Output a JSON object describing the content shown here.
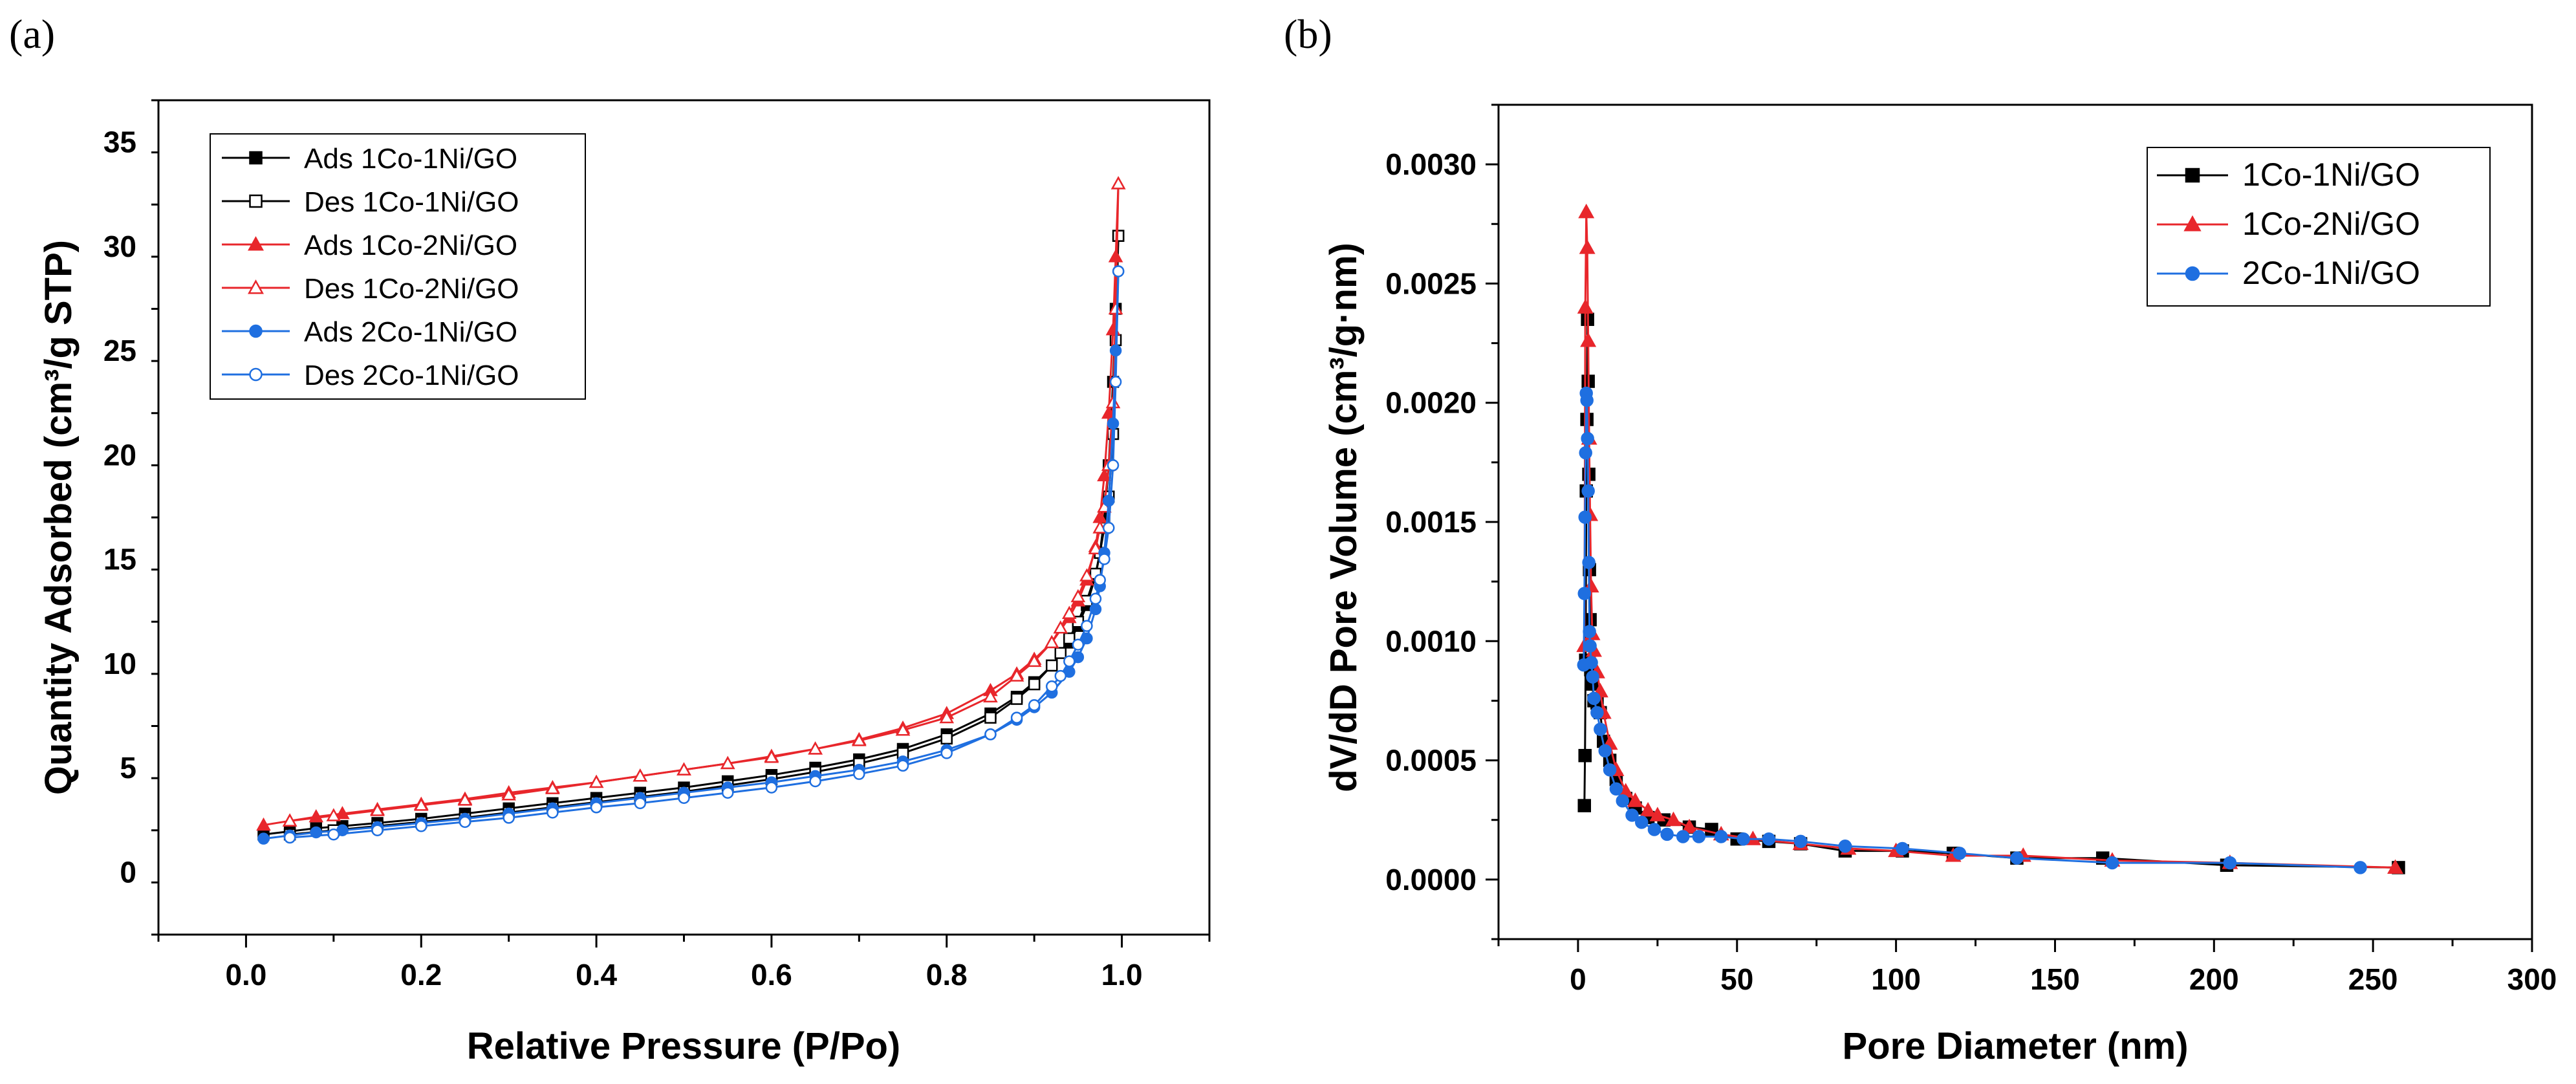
{
  "chart_data": [
    {
      "type": "line",
      "panel_label": "(a)",
      "title": "",
      "xlabel": "Relative Pressure (P/Po)",
      "ylabel": "Quantity Adsorbed (cm³/g STP)",
      "xlim": [
        -0.1,
        1.1
      ],
      "ylim": [
        -3,
        37
      ],
      "xticks": [
        "0.0",
        "0.2",
        "0.4",
        "0.6",
        "0.8",
        "1.0"
      ],
      "yticks": [
        "0",
        "5",
        "10",
        "15",
        "20",
        "25",
        "30",
        "35"
      ],
      "legend_position": "top-left",
      "series": [
        {
          "name": "Ads 1Co-1Ni/GO",
          "color": "#000000",
          "marker": "square-filled",
          "x": [
            0.02,
            0.05,
            0.08,
            0.11,
            0.15,
            0.2,
            0.25,
            0.3,
            0.35,
            0.4,
            0.45,
            0.5,
            0.55,
            0.6,
            0.65,
            0.7,
            0.75,
            0.8,
            0.85,
            0.88,
            0.9,
            0.92,
            0.94,
            0.95,
            0.96,
            0.97,
            0.975,
            0.98,
            0.985,
            0.99,
            0.993,
            0.996
          ],
          "y": [
            1.8,
            1.95,
            2.1,
            2.2,
            2.35,
            2.55,
            2.8,
            3.05,
            3.3,
            3.55,
            3.8,
            4.05,
            4.35,
            4.65,
            5.0,
            5.4,
            5.9,
            6.6,
            7.6,
            8.4,
            9.1,
            9.9,
            11.0,
            11.8,
            12.8,
            14.2,
            15.3,
            17.0,
            19.5,
            23.5,
            27.0,
            30.5
          ]
        },
        {
          "name": "Des 1Co-1Ni/GO",
          "color": "#000000",
          "marker": "square-open",
          "x": [
            0.996,
            0.993,
            0.99,
            0.985,
            0.98,
            0.975,
            0.97,
            0.96,
            0.95,
            0.94,
            0.93,
            0.92,
            0.9,
            0.88,
            0.85,
            0.8,
            0.75,
            0.7,
            0.65,
            0.6,
            0.55,
            0.5,
            0.45,
            0.4,
            0.35,
            0.3,
            0.25,
            0.2,
            0.15,
            0.1,
            0.05
          ],
          "y": [
            30.5,
            25.5,
            21.0,
            18.0,
            16.5,
            15.3,
            14.3,
            13.0,
            12.0,
            11.2,
            10.5,
            9.9,
            9.0,
            8.3,
            7.4,
            6.4,
            5.7,
            5.2,
            4.8,
            4.45,
            4.15,
            3.85,
            3.6,
            3.35,
            3.1,
            2.85,
            2.6,
            2.4,
            2.2,
            2.0,
            1.8
          ]
        },
        {
          "name": "Ads 1Co-2Ni/GO",
          "color": "#e8262b",
          "marker": "triangle-filled",
          "x": [
            0.02,
            0.05,
            0.08,
            0.11,
            0.15,
            0.2,
            0.25,
            0.3,
            0.35,
            0.4,
            0.45,
            0.5,
            0.55,
            0.6,
            0.65,
            0.7,
            0.75,
            0.8,
            0.85,
            0.88,
            0.9,
            0.92,
            0.94,
            0.95,
            0.96,
            0.97,
            0.975,
            0.98,
            0.985,
            0.99,
            0.993,
            0.996
          ],
          "y": [
            2.25,
            2.45,
            2.65,
            2.8,
            3.0,
            3.25,
            3.5,
            3.8,
            4.05,
            4.3,
            4.6,
            4.9,
            5.2,
            5.55,
            5.9,
            6.35,
            6.9,
            7.6,
            8.7,
            9.5,
            10.2,
            11.0,
            12.2,
            13.0,
            14.0,
            15.6,
            17.0,
            19.0,
            22.0,
            26.0,
            29.5,
            33.0
          ]
        },
        {
          "name": "Des 1Co-2Ni/GO",
          "color": "#e8262b",
          "marker": "triangle-open",
          "x": [
            0.996,
            0.993,
            0.99,
            0.985,
            0.98,
            0.975,
            0.97,
            0.96,
            0.95,
            0.94,
            0.93,
            0.92,
            0.9,
            0.88,
            0.85,
            0.8,
            0.75,
            0.7,
            0.65,
            0.6,
            0.55,
            0.5,
            0.45,
            0.4,
            0.35,
            0.3,
            0.25,
            0.2,
            0.15,
            0.1,
            0.05
          ],
          "y": [
            33.0,
            27.0,
            22.5,
            19.5,
            17.5,
            16.5,
            15.5,
            14.2,
            13.2,
            12.4,
            11.7,
            11.0,
            10.1,
            9.4,
            8.4,
            7.4,
            6.8,
            6.3,
            5.9,
            5.5,
            5.2,
            4.9,
            4.6,
            4.3,
            4.0,
            3.7,
            3.45,
            3.2,
            2.95,
            2.7,
            2.45
          ]
        },
        {
          "name": "Ads 2Co-1Ni/GO",
          "color": "#1f6fe0",
          "marker": "circle-filled",
          "x": [
            0.02,
            0.05,
            0.08,
            0.11,
            0.15,
            0.2,
            0.25,
            0.3,
            0.35,
            0.4,
            0.45,
            0.5,
            0.55,
            0.6,
            0.65,
            0.7,
            0.75,
            0.8,
            0.85,
            0.88,
            0.9,
            0.92,
            0.94,
            0.95,
            0.96,
            0.97,
            0.975,
            0.98,
            0.985,
            0.99,
            0.993,
            0.996
          ],
          "y": [
            1.6,
            1.75,
            1.9,
            2.0,
            2.15,
            2.35,
            2.55,
            2.8,
            3.05,
            3.3,
            3.55,
            3.8,
            4.05,
            4.3,
            4.6,
            4.9,
            5.3,
            5.85,
            6.6,
            7.3,
            7.9,
            8.6,
            9.6,
            10.3,
            11.2,
            12.6,
            13.7,
            15.3,
            17.8,
            21.5,
            25.0,
            28.8
          ]
        },
        {
          "name": "Des 2Co-1Ni/GO",
          "color": "#1f6fe0",
          "marker": "circle-open",
          "x": [
            0.996,
            0.993,
            0.99,
            0.985,
            0.98,
            0.975,
            0.97,
            0.96,
            0.95,
            0.94,
            0.93,
            0.92,
            0.9,
            0.88,
            0.85,
            0.8,
            0.75,
            0.7,
            0.65,
            0.6,
            0.55,
            0.5,
            0.45,
            0.4,
            0.35,
            0.3,
            0.25,
            0.2,
            0.15,
            0.1,
            0.05
          ],
          "y": [
            28.8,
            23.5,
            19.5,
            16.5,
            15.0,
            14.0,
            13.1,
            11.8,
            10.9,
            10.1,
            9.4,
            8.9,
            8.0,
            7.4,
            6.6,
            5.7,
            5.1,
            4.7,
            4.35,
            4.05,
            3.8,
            3.55,
            3.3,
            3.1,
            2.85,
            2.6,
            2.4,
            2.2,
            2.0,
            1.8,
            1.65
          ]
        }
      ]
    },
    {
      "type": "line",
      "panel_label": "(b)",
      "title": "",
      "xlabel": "Pore Diameter (nm)",
      "ylabel": "dV/dD Pore Volume (cm³/g·nm)",
      "xlim": [
        -25,
        300
      ],
      "ylim": [
        -0.00025,
        0.00325
      ],
      "xticks": [
        "0",
        "50",
        "100",
        "150",
        "200",
        "250",
        "300"
      ],
      "yticks": [
        "0.0000",
        "0.0005",
        "0.0010",
        "0.0015",
        "0.0020",
        "0.0025",
        "0.0030"
      ],
      "legend_position": "top-right",
      "series": [
        {
          "name": "1Co-1Ni/GO",
          "color": "#000000",
          "marker": "square-filled",
          "x": [
            2.0,
            2.2,
            2.4,
            2.6,
            2.8,
            3.0,
            3.2,
            3.4,
            3.6,
            3.8,
            4.0,
            4.5,
            5.0,
            6.0,
            7.0,
            8.0,
            10.0,
            12.0,
            15.0,
            18.0,
            22.0,
            27.0,
            35.0,
            42.0,
            50.0,
            60.0,
            70.0,
            84.0,
            102.0,
            118.0,
            138.0,
            165.0,
            204.0,
            258.0
          ],
          "y": [
            0.00031,
            0.00052,
            0.00092,
            0.00163,
            0.00193,
            0.00235,
            0.00209,
            0.0017,
            0.0013,
            0.00109,
            0.00088,
            0.00082,
            0.00075,
            0.00074,
            0.0007,
            0.00058,
            0.0005,
            0.00042,
            0.00034,
            0.0003,
            0.00026,
            0.00025,
            0.00022,
            0.00021,
            0.00017,
            0.00016,
            0.00015,
            0.00012,
            0.00012,
            0.00011,
            9e-05,
            9e-05,
            6e-05,
            5e-05
          ]
        },
        {
          "name": "1Co-2Ni/GO",
          "color": "#e8262b",
          "marker": "triangle-filled",
          "x": [
            2.0,
            2.3,
            2.6,
            2.9,
            3.2,
            3.5,
            3.8,
            4.1,
            4.5,
            5.0,
            6.0,
            7.0,
            8.0,
            10.0,
            12.0,
            15.0,
            18.0,
            22.0,
            25.0,
            30.0,
            35.0,
            45.0,
            55.0,
            70.0,
            85.0,
            100.0,
            118.0,
            140.0,
            168.0,
            205.0,
            257.0
          ],
          "y": [
            0.00098,
            0.0024,
            0.0028,
            0.00265,
            0.00226,
            0.00185,
            0.00153,
            0.00123,
            0.00103,
            0.00096,
            0.00087,
            0.00079,
            0.0007,
            0.00057,
            0.00046,
            0.00037,
            0.00033,
            0.00029,
            0.00027,
            0.00025,
            0.00022,
            0.00019,
            0.00017,
            0.00015,
            0.00013,
            0.00012,
            0.0001,
            0.0001,
            8e-05,
            7e-05,
            5e-05
          ]
        },
        {
          "name": "2Co-1Ni/GO",
          "color": "#1f6fe0",
          "marker": "circle-filled",
          "x": [
            1.8,
            2.0,
            2.2,
            2.4,
            2.6,
            2.8,
            3.0,
            3.2,
            3.4,
            3.6,
            3.8,
            4.2,
            4.6,
            5.0,
            6.0,
            7.0,
            8.5,
            10.0,
            12.0,
            14.0,
            17.0,
            20.0,
            24.0,
            28.0,
            33.0,
            38.0,
            45.0,
            52.0,
            60.0,
            70.0,
            84.0,
            102.0,
            120.0,
            138.0,
            168.0,
            205.0,
            246.0
          ],
          "y": [
            0.0009,
            0.0012,
            0.00152,
            0.00179,
            0.00204,
            0.00201,
            0.00185,
            0.00163,
            0.00133,
            0.00104,
            0.00098,
            0.00091,
            0.00085,
            0.00076,
            0.0007,
            0.00063,
            0.00054,
            0.00046,
            0.00038,
            0.00033,
            0.00027,
            0.00024,
            0.00021,
            0.00019,
            0.00018,
            0.00018,
            0.00018,
            0.00017,
            0.00017,
            0.00016,
            0.00014,
            0.00013,
            0.00011,
            9e-05,
            7e-05,
            7e-05,
            5e-05
          ]
        }
      ]
    }
  ]
}
